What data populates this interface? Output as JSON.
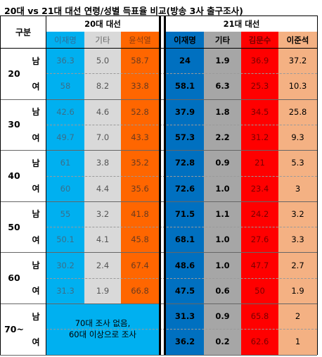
{
  "title": "20대 vs 21대 대선 연령/성별 득표율 비교(방송 3사 출구조사)",
  "header": {
    "group_label": "구분",
    "election20": "20대 대선",
    "election21": "21대 대선",
    "cols20": [
      "이재명",
      "기타",
      "윤석열"
    ],
    "cols21": [
      "이재명",
      "기타",
      "김문수",
      "이준석"
    ]
  },
  "colors": {
    "e20_lee": "#00b0f0",
    "e20_etc": "#d9d9d9",
    "e20_yoon": "#ff6600",
    "e21_lee": "#0070c0",
    "e21_etc": "#a6a6a6",
    "e21_kim": "#ff0000",
    "e21_jun": "#f4b183",
    "header20_bg": "#ffffff",
    "header21_bg": "#ffffff"
  },
  "rows": [
    {
      "age": "20",
      "gender": "남",
      "e20": [
        "36.3",
        "5.0",
        "58.7"
      ],
      "e21": [
        "24",
        "1.9",
        "36.9",
        "37.2"
      ]
    },
    {
      "age": "",
      "gender": "여",
      "e20": [
        "58",
        "8.2",
        "33.8"
      ],
      "e21": [
        "58.1",
        "6.3",
        "25.3",
        "10.3"
      ]
    },
    {
      "age": "30",
      "gender": "남",
      "e20": [
        "42.6",
        "4.6",
        "52.8"
      ],
      "e21": [
        "37.9",
        "1.8",
        "34.5",
        "25.8"
      ]
    },
    {
      "age": "",
      "gender": "여",
      "e20": [
        "49.7",
        "7.0",
        "43.3"
      ],
      "e21": [
        "57.3",
        "2.2",
        "31.2",
        "9.3"
      ]
    },
    {
      "age": "40",
      "gender": "남",
      "e20": [
        "61",
        "3.8",
        "35.2"
      ],
      "e21": [
        "72.8",
        "0.9",
        "21",
        "5.3"
      ]
    },
    {
      "age": "",
      "gender": "여",
      "e20": [
        "60",
        "4.4",
        "35.6"
      ],
      "e21": [
        "72.6",
        "1.0",
        "23.4",
        "3"
      ]
    },
    {
      "age": "50",
      "gender": "남",
      "e20": [
        "55",
        "3.2",
        "41.8"
      ],
      "e21": [
        "71.5",
        "1.1",
        "24.2",
        "3.2"
      ]
    },
    {
      "age": "",
      "gender": "여",
      "e20": [
        "50.1",
        "4.1",
        "45.8"
      ],
      "e21": [
        "68.1",
        "1.0",
        "27.6",
        "3.3"
      ]
    },
    {
      "age": "60",
      "gender": "남",
      "e20": [
        "30.2",
        "2.4",
        "67.4"
      ],
      "e21": [
        "48.6",
        "1.0",
        "47.7",
        "2.7"
      ]
    },
    {
      "age": "",
      "gender": "여",
      "e20": [
        "31.3",
        "1.9",
        "66.8"
      ],
      "e21": [
        "47.5",
        "0.6",
        "50",
        "1.9"
      ]
    },
    {
      "age": "70~",
      "gender": "남",
      "e20": [],
      "e21": [
        "31.3",
        "0.9",
        "65.8",
        "2"
      ]
    },
    {
      "age": "",
      "gender": "여",
      "e20": [],
      "e21": [
        "36.2",
        "0.2",
        "62.6",
        "1"
      ]
    }
  ],
  "note70": "70대 조사 없음,\n60대 이상으로 조사"
}
